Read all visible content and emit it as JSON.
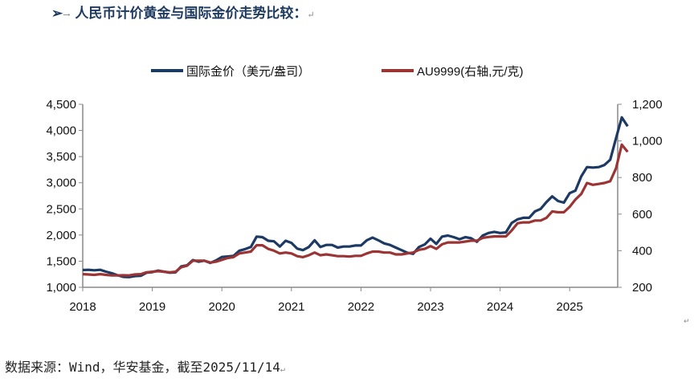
{
  "heading": {
    "bullet": "➢",
    "arrow": "→",
    "text": "人民币计价黄金与国际金价走势比较：",
    "pilcrow": "↵"
  },
  "source": {
    "text": "数据来源：Wind，华安基金，截至2025/11/14",
    "pilcrow": "↵"
  },
  "end_mark": "↵",
  "chart_data": {
    "type": "line",
    "title": "",
    "legend_position": "top",
    "x_ticks": [
      "2018",
      "2019",
      "2020",
      "2021",
      "2022",
      "2023",
      "2024",
      "2025"
    ],
    "y_left": {
      "ylim": [
        1000,
        4500
      ],
      "ticks": [
        "1,000",
        "1,500",
        "2,000",
        "2,500",
        "3,000",
        "3,500",
        "4,000",
        "4,500"
      ]
    },
    "y_right": {
      "ylim": [
        200,
        1200
      ],
      "ticks": [
        "200",
        "400",
        "600",
        "800",
        "1,000",
        "1,200"
      ]
    },
    "grid": false,
    "series": [
      {
        "name": "国际金价（美元/盎司）",
        "axis": "left",
        "color": "#1c3a63",
        "start": "2018-01",
        "values": [
          1330,
          1335,
          1325,
          1335,
          1300,
          1270,
          1230,
          1200,
          1195,
          1215,
          1220,
          1280,
          1290,
          1320,
          1300,
          1280,
          1285,
          1400,
          1420,
          1520,
          1490,
          1510,
          1465,
          1515,
          1580,
          1590,
          1600,
          1700,
          1730,
          1770,
          1970,
          1960,
          1890,
          1880,
          1780,
          1890,
          1850,
          1740,
          1710,
          1770,
          1900,
          1770,
          1810,
          1810,
          1760,
          1780,
          1780,
          1800,
          1800,
          1900,
          1950,
          1900,
          1840,
          1810,
          1760,
          1710,
          1660,
          1640,
          1770,
          1820,
          1930,
          1830,
          1970,
          1990,
          1960,
          1920,
          1960,
          1940,
          1870,
          1990,
          2040,
          2060,
          2040,
          2050,
          2230,
          2300,
          2330,
          2330,
          2450,
          2500,
          2630,
          2740,
          2650,
          2620,
          2800,
          2850,
          3120,
          3300,
          3290,
          3300,
          3340,
          3440,
          3850,
          4250,
          4080
        ]
      },
      {
        "name": "AU9999(右轴,元/克)",
        "axis": "right",
        "color": "#9b3434",
        "start": "2018-01",
        "values": [
          272,
          270,
          268,
          272,
          268,
          265,
          265,
          266,
          265,
          270,
          272,
          282,
          285,
          288,
          285,
          282,
          285,
          310,
          318,
          345,
          345,
          345,
          335,
          340,
          350,
          360,
          365,
          385,
          390,
          395,
          430,
          430,
          410,
          400,
          385,
          390,
          385,
          370,
          365,
          375,
          390,
          375,
          380,
          375,
          370,
          370,
          368,
          372,
          372,
          385,
          395,
          395,
          390,
          390,
          380,
          380,
          385,
          390,
          405,
          410,
          425,
          410,
          435,
          445,
          445,
          445,
          450,
          455,
          455,
          470,
          475,
          478,
          478,
          478,
          510,
          550,
          555,
          555,
          565,
          565,
          580,
          615,
          610,
          610,
          640,
          680,
          710,
          770,
          760,
          765,
          770,
          780,
          850,
          980,
          940
        ]
      }
    ]
  }
}
